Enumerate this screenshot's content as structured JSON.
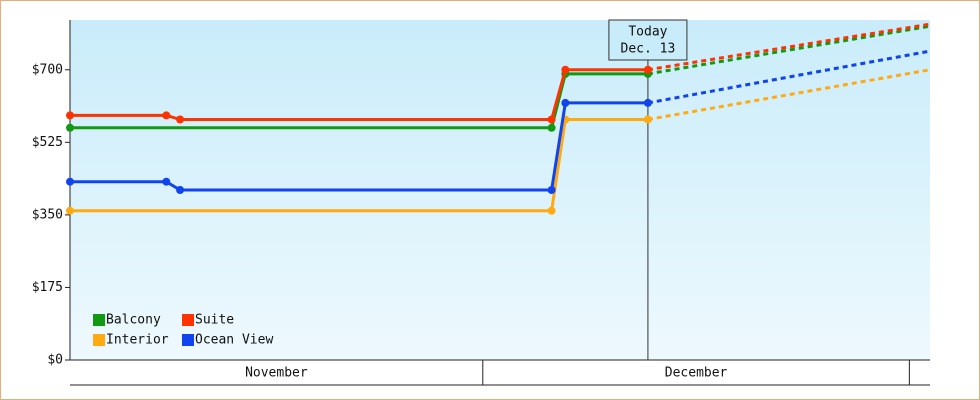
{
  "chart_data": {
    "type": "line",
    "ylim": [
      0,
      820
    ],
    "yticks": [
      {
        "value": 0,
        "label": "$0"
      },
      {
        "value": 175,
        "label": "$175"
      },
      {
        "value": 350,
        "label": "$350"
      },
      {
        "value": 525,
        "label": "$525"
      },
      {
        "value": 700,
        "label": "$700"
      }
    ],
    "xlim": [
      0,
      62.5
    ],
    "months": [
      {
        "label": "November",
        "start": 0,
        "end": 30
      },
      {
        "label": "December",
        "start": 30,
        "end": 61
      }
    ],
    "today": {
      "x": 42,
      "label": [
        "Today",
        "Dec. 13"
      ]
    },
    "legend": "lower left",
    "series": [
      {
        "name": "Balcony",
        "color": "#119911",
        "x": [
          0,
          35,
          36,
          42
        ],
        "values": [
          560,
          560,
          690,
          690
        ],
        "forecast": {
          "x": [
            42,
            62.5
          ],
          "values": [
            690,
            805
          ]
        }
      },
      {
        "name": "Suite",
        "color": "#ff3300",
        "x": [
          0,
          7,
          8,
          35,
          36,
          42
        ],
        "values": [
          590,
          590,
          580,
          580,
          700,
          700
        ],
        "forecast": {
          "x": [
            42,
            62.5
          ],
          "values": [
            700,
            810
          ]
        }
      },
      {
        "name": "Interior",
        "color": "#ffaa11",
        "x": [
          0,
          35,
          36,
          42
        ],
        "values": [
          360,
          360,
          580,
          580
        ],
        "forecast": {
          "x": [
            42,
            62.5
          ],
          "values": [
            580,
            700
          ]
        }
      },
      {
        "name": "Ocean View",
        "color": "#1144ee",
        "x": [
          0,
          7,
          8,
          35,
          36,
          42
        ],
        "values": [
          430,
          430,
          410,
          410,
          620,
          620
        ],
        "forecast": {
          "x": [
            42,
            62.5
          ],
          "values": [
            620,
            745
          ]
        }
      }
    ]
  }
}
